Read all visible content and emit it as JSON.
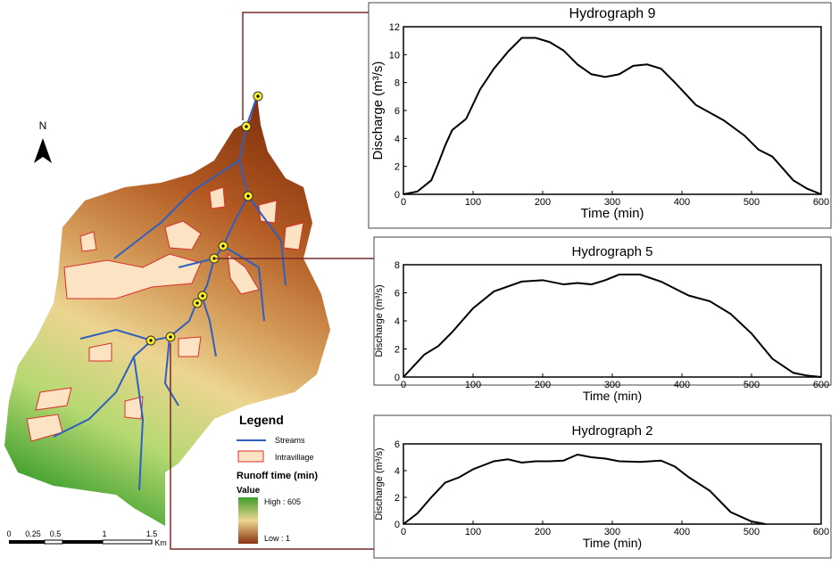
{
  "chart_data": [
    {
      "type": "line",
      "title": "Hydrograph 9",
      "xlabel": "Time (min)",
      "ylabel": "Discharge (m³/s)",
      "xlim": [
        0,
        600
      ],
      "xticks": [
        0,
        100,
        200,
        300,
        400,
        500,
        600
      ],
      "ylim": [
        0,
        12
      ],
      "yticks": [
        0,
        2,
        4,
        6,
        8,
        10,
        12
      ],
      "x": [
        0,
        20,
        40,
        50,
        60,
        70,
        90,
        110,
        130,
        150,
        170,
        190,
        210,
        230,
        250,
        270,
        290,
        310,
        330,
        350,
        370,
        390,
        420,
        460,
        490,
        510,
        530,
        560,
        580,
        600
      ],
      "series": [
        {
          "color": "#000000",
          "values": [
            0,
            0.2,
            1,
            2.2,
            3.5,
            4.6,
            5.4,
            7.5,
            9,
            10.2,
            11.2,
            11.2,
            10.9,
            10.3,
            9.3,
            8.6,
            8.4,
            8.6,
            9.2,
            9.3,
            9.0,
            8.0,
            6.4,
            5.3,
            4.2,
            3.2,
            2.7,
            1.0,
            0.4,
            0
          ]
        }
      ]
    },
    {
      "type": "line",
      "title": "Hydrograph 5",
      "xlabel": "Time (min)",
      "ylabel": "Discharge (m³/s)",
      "xlim": [
        0,
        600
      ],
      "xticks": [
        0,
        100,
        200,
        300,
        400,
        500,
        600
      ],
      "ylim": [
        0,
        8
      ],
      "yticks": [
        0,
        2,
        4,
        6,
        8
      ],
      "x": [
        0,
        30,
        50,
        70,
        100,
        130,
        170,
        200,
        230,
        250,
        270,
        290,
        310,
        340,
        370,
        410,
        440,
        470,
        500,
        530,
        560,
        580,
        600
      ],
      "series": [
        {
          "color": "#000000",
          "values": [
            0,
            1.6,
            2.2,
            3.2,
            4.9,
            6.1,
            6.8,
            6.9,
            6.6,
            6.7,
            6.6,
            6.9,
            7.3,
            7.3,
            6.8,
            5.8,
            5.4,
            4.5,
            3.1,
            1.3,
            0.3,
            0.1,
            0
          ]
        }
      ]
    },
    {
      "type": "line",
      "title": "Hydrograph 2",
      "xlabel": "Time (min)",
      "ylabel": "Discharge (m³/s)",
      "xlim": [
        0,
        600
      ],
      "xticks": [
        0,
        100,
        200,
        300,
        400,
        500,
        600
      ],
      "ylim": [
        0,
        6
      ],
      "yticks": [
        0,
        2,
        4,
        6
      ],
      "x": [
        0,
        20,
        40,
        60,
        80,
        100,
        130,
        150,
        170,
        190,
        210,
        230,
        250,
        270,
        290,
        310,
        340,
        370,
        390,
        410,
        440,
        470,
        500,
        520
      ],
      "series": [
        {
          "color": "#000000",
          "values": [
            0,
            0.8,
            2,
            3.1,
            3.5,
            4.1,
            4.7,
            4.85,
            4.6,
            4.7,
            4.7,
            4.75,
            5.2,
            5.0,
            4.9,
            4.7,
            4.65,
            4.75,
            4.3,
            3.5,
            2.5,
            0.9,
            0.2,
            0
          ]
        }
      ]
    }
  ],
  "map": {
    "north": "N",
    "legend": {
      "title": "Legend",
      "streams": "Streams",
      "intravillage": "Intravillage",
      "runoff": "Runoff time (min)",
      "value": "Value",
      "high": "High : 605",
      "low": "Low : 1"
    },
    "scale": [
      "0",
      "0.25",
      "0.5",
      "1",
      "1.5",
      "Km"
    ]
  }
}
